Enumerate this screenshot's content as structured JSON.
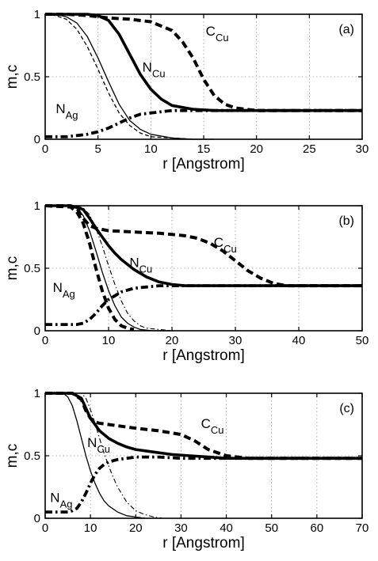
{
  "chart_data": [
    {
      "type": "line",
      "panel_tag": "(a)",
      "xlabel": "r [Angstrom]",
      "ylabel": "m,c",
      "xlim": [
        0,
        30
      ],
      "ylim": [
        0,
        1
      ],
      "xticks": [
        0,
        5,
        10,
        15,
        20,
        25,
        30
      ],
      "yticks": [
        0,
        0.5,
        1
      ],
      "yticklabels": [
        "0",
        "0.5",
        "1"
      ],
      "grid": true,
      "curve_labels": [
        {
          "series": "C_Cu",
          "text": "C",
          "sub": "Cu",
          "x": 15.2,
          "y": 0.83
        },
        {
          "series": "N_Cu",
          "text": "N",
          "sub": "Cu",
          "x": 9.2,
          "y": 0.54
        },
        {
          "series": "N_Ag",
          "text": "N",
          "sub": "Ag",
          "x": 1.0,
          "y": 0.21
        }
      ],
      "series": [
        {
          "id": "C_Cu",
          "style": "thick-dashed",
          "x": [
            0,
            2,
            4,
            6,
            8,
            10,
            12,
            13,
            14,
            15,
            16,
            17,
            18,
            20,
            25,
            30
          ],
          "y": [
            1,
            1,
            0.99,
            0.97,
            0.96,
            0.94,
            0.87,
            0.78,
            0.65,
            0.48,
            0.35,
            0.28,
            0.25,
            0.23,
            0.23,
            0.23
          ]
        },
        {
          "id": "N_Cu",
          "style": "thick-solid",
          "x": [
            0,
            4,
            5,
            6,
            7,
            8,
            9,
            10,
            11,
            12,
            14,
            16,
            20,
            30
          ],
          "y": [
            1,
            1,
            0.99,
            0.95,
            0.84,
            0.68,
            0.52,
            0.4,
            0.32,
            0.27,
            0.24,
            0.23,
            0.23,
            0.23
          ]
        },
        {
          "id": "N_Ag",
          "style": "thick-dashdot",
          "x": [
            0,
            2,
            3,
            4,
            5,
            6,
            7,
            8,
            9,
            10,
            11,
            12,
            14,
            20,
            30
          ],
          "y": [
            0.02,
            0.02,
            0.03,
            0.04,
            0.06,
            0.09,
            0.13,
            0.17,
            0.2,
            0.21,
            0.22,
            0.23,
            0.23,
            0.23,
            0.23
          ]
        },
        {
          "id": "m_Cu",
          "style": "thin-solid",
          "x": [
            0,
            1,
            2,
            3,
            4,
            5,
            6,
            7,
            8,
            9,
            10,
            12,
            14,
            16
          ],
          "y": [
            1,
            1,
            0.98,
            0.93,
            0.82,
            0.65,
            0.46,
            0.28,
            0.15,
            0.08,
            0.04,
            0.01,
            0,
            0
          ]
        },
        {
          "id": "m_Ag",
          "style": "thin-dashed",
          "x": [
            0,
            1,
            2,
            3,
            4,
            5,
            6,
            7,
            8,
            9,
            10,
            12,
            14
          ],
          "y": [
            1,
            0.99,
            0.96,
            0.88,
            0.74,
            0.56,
            0.37,
            0.21,
            0.11,
            0.05,
            0.02,
            0.01,
            0
          ]
        }
      ]
    },
    {
      "type": "line",
      "panel_tag": "(b)",
      "xlabel": "r [Angstrom]",
      "ylabel": "m,c",
      "xlim": [
        0,
        50
      ],
      "ylim": [
        0,
        1
      ],
      "xticks": [
        0,
        10,
        20,
        30,
        40,
        50
      ],
      "yticks": [
        0,
        0.5,
        1
      ],
      "yticklabels": [
        "0",
        "0.5",
        "1"
      ],
      "grid": true,
      "curve_labels": [
        {
          "series": "C_Cu",
          "text": "C",
          "sub": "Cu",
          "x": 26.6,
          "y": 0.67
        },
        {
          "series": "N_Cu",
          "text": "N",
          "sub": "Cu",
          "x": 13.3,
          "y": 0.51
        },
        {
          "series": "N_Ag",
          "text": "N",
          "sub": "Ag",
          "x": 1.2,
          "y": 0.31
        }
      ],
      "series": [
        {
          "id": "C_Cu",
          "style": "thick-dashed",
          "x": [
            0,
            4,
            5,
            6,
            7,
            8,
            10,
            14,
            18,
            20,
            22,
            24,
            26,
            28,
            30,
            32,
            34,
            36,
            38,
            40,
            50
          ],
          "y": [
            1,
            1,
            0.98,
            0.9,
            0.84,
            0.82,
            0.8,
            0.79,
            0.78,
            0.77,
            0.76,
            0.74,
            0.7,
            0.64,
            0.56,
            0.48,
            0.42,
            0.38,
            0.36,
            0.36,
            0.36
          ]
        },
        {
          "id": "N_Cu",
          "style": "thick-solid",
          "x": [
            0,
            4,
            6,
            7,
            8,
            9,
            10,
            11,
            12,
            14,
            16,
            18,
            20,
            22,
            25,
            50
          ],
          "y": [
            1,
            1,
            0.97,
            0.9,
            0.82,
            0.75,
            0.68,
            0.62,
            0.57,
            0.49,
            0.43,
            0.39,
            0.37,
            0.36,
            0.36,
            0.36
          ]
        },
        {
          "id": "N_Ag",
          "style": "thick-dashdot",
          "x": [
            0,
            3,
            5,
            6,
            7,
            8,
            9,
            10,
            11,
            12,
            14,
            16,
            18,
            20,
            50
          ],
          "y": [
            0.05,
            0.05,
            0.05,
            0.06,
            0.09,
            0.14,
            0.2,
            0.25,
            0.28,
            0.31,
            0.34,
            0.35,
            0.36,
            0.36,
            0.36
          ]
        },
        {
          "id": "m_Cu",
          "style": "thin-dashdot",
          "x": [
            0,
            5,
            6,
            7,
            8,
            9,
            10,
            11,
            12,
            13,
            14,
            15,
            16,
            18,
            20
          ],
          "y": [
            1,
            1,
            0.98,
            0.93,
            0.82,
            0.68,
            0.52,
            0.37,
            0.24,
            0.14,
            0.08,
            0.04,
            0.02,
            0.01,
            0
          ]
        },
        {
          "id": "m_Ag",
          "style": "thin-solid",
          "x": [
            0,
            4,
            5,
            6,
            7,
            8,
            9,
            10,
            11,
            12,
            13,
            14,
            15,
            17,
            20
          ],
          "y": [
            1,
            1,
            0.98,
            0.92,
            0.8,
            0.64,
            0.47,
            0.32,
            0.2,
            0.11,
            0.06,
            0.03,
            0.01,
            0,
            0
          ]
        },
        {
          "id": "N_Ag_dashed",
          "style": "thick-dashed",
          "x": [
            0,
            4,
            5,
            6,
            7,
            8,
            9,
            10,
            11,
            12,
            13,
            14
          ],
          "y": [
            1,
            0.99,
            0.95,
            0.86,
            0.7,
            0.5,
            0.32,
            0.18,
            0.09,
            0.04,
            0.02,
            0.01
          ]
        }
      ]
    },
    {
      "type": "line",
      "panel_tag": "(c)",
      "xlabel": "r [Angstrom]",
      "ylabel": "m,c",
      "xlim": [
        0,
        70
      ],
      "ylim": [
        0,
        1
      ],
      "xticks": [
        0,
        10,
        20,
        30,
        40,
        50,
        60,
        70
      ],
      "yticks": [
        0,
        0.5,
        1
      ],
      "yticklabels": [
        "0",
        "0.5",
        "1"
      ],
      "grid": true,
      "curve_labels": [
        {
          "series": "C_Cu",
          "text": "C",
          "sub": "Cu",
          "x": 34.4,
          "y": 0.72
        },
        {
          "series": "N_Cu",
          "text": "N",
          "sub": "Cu",
          "x": 9.3,
          "y": 0.57
        },
        {
          "series": "N_Ag",
          "text": "N",
          "sub": "Ag",
          "x": 1.1,
          "y": 0.13
        }
      ],
      "series": [
        {
          "id": "C_Cu",
          "style": "thick-dashed",
          "x": [
            0,
            6,
            8,
            9,
            10,
            11,
            12,
            14,
            16,
            20,
            25,
            30,
            33,
            36,
            40,
            45,
            50,
            70
          ],
          "y": [
            1,
            1,
            0.95,
            0.86,
            0.8,
            0.77,
            0.76,
            0.75,
            0.74,
            0.72,
            0.7,
            0.67,
            0.62,
            0.55,
            0.5,
            0.48,
            0.48,
            0.48
          ]
        },
        {
          "id": "N_Cu",
          "style": "thick-solid",
          "x": [
            0,
            6,
            8,
            9,
            10,
            11,
            12,
            14,
            16,
            18,
            20,
            24,
            28,
            32,
            36,
            40,
            70
          ],
          "y": [
            1,
            1,
            0.96,
            0.88,
            0.8,
            0.75,
            0.7,
            0.64,
            0.6,
            0.57,
            0.55,
            0.53,
            0.51,
            0.5,
            0.49,
            0.48,
            0.48
          ]
        },
        {
          "id": "N_Ag",
          "style": "thick-dashdot",
          "x": [
            0,
            3,
            5,
            6,
            7,
            8,
            9,
            10,
            11,
            12,
            13,
            14,
            16,
            18,
            20,
            25,
            30,
            40,
            70
          ],
          "y": [
            0.05,
            0.05,
            0.05,
            0.06,
            0.08,
            0.13,
            0.2,
            0.28,
            0.35,
            0.4,
            0.43,
            0.45,
            0.47,
            0.48,
            0.49,
            0.49,
            0.48,
            0.48,
            0.48
          ]
        },
        {
          "id": "m_Ag",
          "style": "thin-solid",
          "x": [
            0,
            4,
            5,
            6,
            7,
            8,
            9,
            10,
            11,
            12,
            13,
            14,
            16,
            18,
            20,
            22
          ],
          "y": [
            1,
            1,
            0.97,
            0.9,
            0.78,
            0.64,
            0.5,
            0.38,
            0.28,
            0.2,
            0.14,
            0.1,
            0.05,
            0.02,
            0.01,
            0
          ]
        },
        {
          "id": "m_Cu",
          "style": "thin-dashdot",
          "x": [
            0,
            8,
            9,
            10,
            11,
            12,
            13,
            14,
            15,
            16,
            18,
            20,
            22,
            24,
            26
          ],
          "y": [
            1,
            1,
            0.96,
            0.87,
            0.76,
            0.64,
            0.52,
            0.42,
            0.33,
            0.25,
            0.13,
            0.06,
            0.03,
            0.01,
            0
          ]
        }
      ]
    }
  ]
}
